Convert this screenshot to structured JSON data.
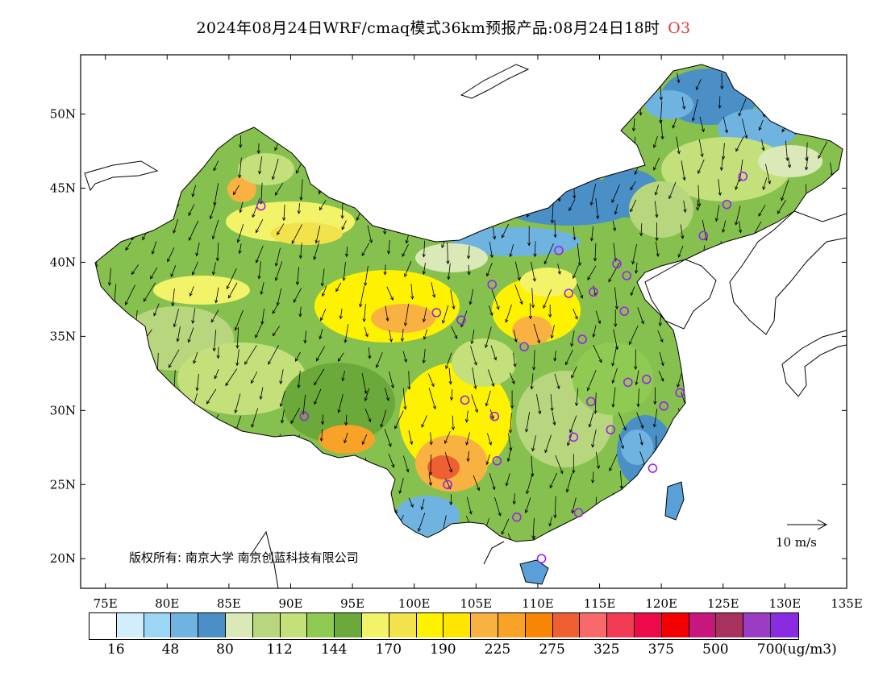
{
  "title": {
    "text": "2024年08月24日WRF/cmaq模式36km预报产品:08月24日18时",
    "species": "O3",
    "species_color": "#e23b3b"
  },
  "axes": {
    "lon_ticks": [
      "75E",
      "80E",
      "85E",
      "90E",
      "95E",
      "100E",
      "105E",
      "110E",
      "115E",
      "120E",
      "125E",
      "130E",
      "135E"
    ],
    "lat_ticks": [
      "20N",
      "25N",
      "30N",
      "35N",
      "40N",
      "45N",
      "50N"
    ]
  },
  "copyright": "版权所有: 南京大学  南京创蓝科技有限公司",
  "wind_reference": {
    "label": "10 m/s"
  },
  "legend": {
    "unit": "(ug/m3)",
    "colors": [
      "#ffffff",
      "#d2eefc",
      "#9bd7f4",
      "#6fb4e0",
      "#4a8fc6",
      "#dbe9b8",
      "#b8d67d",
      "#c3e07a",
      "#8fca52",
      "#6aa93a",
      "#f3f36a",
      "#f2e34d",
      "#fff200",
      "#fde500",
      "#f9b241",
      "#f8a227",
      "#f78606",
      "#ee5f31",
      "#f86a6a",
      "#f23c56",
      "#ec0a4a",
      "#f50000",
      "#c8177c",
      "#a8325e",
      "#9b3dc4",
      "#8a2be2"
    ],
    "labels": [
      "16",
      "48",
      "80",
      "112",
      "144",
      "170",
      "190",
      "225",
      "275",
      "325",
      "375",
      "500",
      "700"
    ]
  },
  "stations": [
    {
      "lon": 87.6,
      "lat": 43.8
    },
    {
      "lon": 91.1,
      "lat": 29.6
    },
    {
      "lon": 101.8,
      "lat": 36.6
    },
    {
      "lon": 103.8,
      "lat": 36.1
    },
    {
      "lon": 106.3,
      "lat": 38.5
    },
    {
      "lon": 111.7,
      "lat": 40.8
    },
    {
      "lon": 112.5,
      "lat": 37.9
    },
    {
      "lon": 114.5,
      "lat": 38.0
    },
    {
      "lon": 116.4,
      "lat": 39.9
    },
    {
      "lon": 117.2,
      "lat": 39.1
    },
    {
      "lon": 117.0,
      "lat": 36.7
    },
    {
      "lon": 113.6,
      "lat": 34.8
    },
    {
      "lon": 108.9,
      "lat": 34.3
    },
    {
      "lon": 104.1,
      "lat": 30.7
    },
    {
      "lon": 106.5,
      "lat": 29.6
    },
    {
      "lon": 106.7,
      "lat": 26.6
    },
    {
      "lon": 102.7,
      "lat": 25.0
    },
    {
      "lon": 108.3,
      "lat": 22.8
    },
    {
      "lon": 113.3,
      "lat": 23.1
    },
    {
      "lon": 110.3,
      "lat": 20.0
    },
    {
      "lon": 119.3,
      "lat": 26.1
    },
    {
      "lon": 115.9,
      "lat": 28.7
    },
    {
      "lon": 112.9,
      "lat": 28.2
    },
    {
      "lon": 114.3,
      "lat": 30.6
    },
    {
      "lon": 117.3,
      "lat": 31.9
    },
    {
      "lon": 118.8,
      "lat": 32.1
    },
    {
      "lon": 120.2,
      "lat": 30.3
    },
    {
      "lon": 121.5,
      "lat": 31.2
    },
    {
      "lon": 123.4,
      "lat": 41.8
    },
    {
      "lon": 125.3,
      "lat": 43.9
    },
    {
      "lon": 126.6,
      "lat": 45.8
    }
  ]
}
